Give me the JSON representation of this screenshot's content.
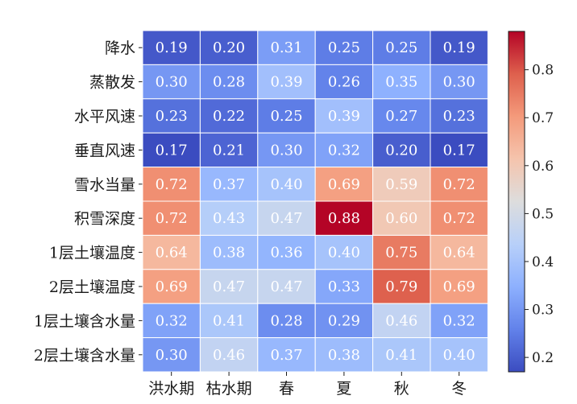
{
  "chart_data": {
    "type": "heatmap",
    "title": "",
    "rows": [
      "降水",
      "蒸散发",
      "水平风速",
      "垂直风速",
      "雪水当量",
      "积雪深度",
      "1层土壤温度",
      "2层土壤温度",
      "1层土壤含水量",
      "2层土壤含水量"
    ],
    "columns": [
      "洪水期",
      "枯水期",
      "春",
      "夏",
      "秋",
      "冬"
    ],
    "values": [
      [
        0.19,
        0.2,
        0.31,
        0.25,
        0.25,
        0.19
      ],
      [
        0.3,
        0.28,
        0.39,
        0.26,
        0.35,
        0.3
      ],
      [
        0.23,
        0.22,
        0.25,
        0.39,
        0.27,
        0.23
      ],
      [
        0.17,
        0.21,
        0.3,
        0.32,
        0.2,
        0.17
      ],
      [
        0.72,
        0.37,
        0.4,
        0.69,
        0.59,
        0.72
      ],
      [
        0.72,
        0.43,
        0.47,
        0.88,
        0.6,
        0.72
      ],
      [
        0.64,
        0.38,
        0.36,
        0.4,
        0.75,
        0.64
      ],
      [
        0.69,
        0.47,
        0.47,
        0.33,
        0.79,
        0.69
      ],
      [
        0.32,
        0.41,
        0.28,
        0.29,
        0.46,
        0.32
      ],
      [
        0.3,
        0.46,
        0.37,
        0.38,
        0.41,
        0.4
      ]
    ],
    "value_labels": [
      [
        "0.19",
        "0.20",
        "0.31",
        "0.25",
        "0.25",
        "0.19"
      ],
      [
        "0.30",
        "0.28",
        "0.39",
        "0.26",
        "0.35",
        "0.30"
      ],
      [
        "0.23",
        "0.22",
        "0.25",
        "0.39",
        "0.27",
        "0.23"
      ],
      [
        "0.17",
        "0.21",
        "0.30",
        "0.32",
        "0.20",
        "0.17"
      ],
      [
        "0.72",
        "0.37",
        "0.40",
        "0.69",
        "0.59",
        "0.72"
      ],
      [
        "0.72",
        "0.43",
        "0.47",
        "0.88",
        "0.60",
        "0.72"
      ],
      [
        "0.64",
        "0.38",
        "0.36",
        "0.40",
        "0.75",
        "0.64"
      ],
      [
        "0.69",
        "0.47",
        "0.47",
        "0.33",
        "0.79",
        "0.69"
      ],
      [
        "0.32",
        "0.41",
        "0.28",
        "0.29",
        "0.46",
        "0.32"
      ],
      [
        "0.30",
        "0.46",
        "0.37",
        "0.38",
        "0.41",
        "0.40"
      ]
    ],
    "colormap": "coolwarm",
    "colorbar": {
      "vmin": 0.17,
      "vmax": 0.88,
      "ticks": [
        0.2,
        0.3,
        0.4,
        0.5,
        0.6,
        0.7,
        0.8
      ],
      "tick_labels": [
        "0.2",
        "0.3",
        "0.4",
        "0.5",
        "0.6",
        "0.7",
        "0.8"
      ],
      "placement": "right"
    },
    "grid": true,
    "cell_border_color": "#ffffff"
  }
}
